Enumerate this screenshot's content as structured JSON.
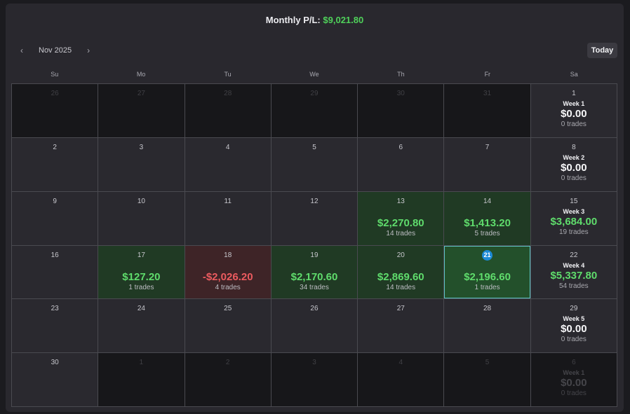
{
  "header": {
    "title_label": "Monthly P/L:",
    "title_value": "$9,021.80"
  },
  "nav": {
    "prev": "‹",
    "month": "Nov 2025",
    "next": "›",
    "today": "Today"
  },
  "days_of_week": [
    "Su",
    "Mo",
    "Tu",
    "We",
    "Th",
    "Fr",
    "Sa"
  ],
  "weeks": [
    {
      "days": [
        {
          "n": "26",
          "out": true
        },
        {
          "n": "27",
          "out": true
        },
        {
          "n": "28",
          "out": true
        },
        {
          "n": "29",
          "out": true
        },
        {
          "n": "30",
          "out": true
        },
        {
          "n": "31",
          "out": true
        },
        {
          "n": "1",
          "week": {
            "label": "Week 1",
            "pl": "$0.00",
            "trades": "0 trades",
            "state": "neutral"
          }
        }
      ]
    },
    {
      "days": [
        {
          "n": "2"
        },
        {
          "n": "3"
        },
        {
          "n": "4"
        },
        {
          "n": "5"
        },
        {
          "n": "6"
        },
        {
          "n": "7"
        },
        {
          "n": "8",
          "week": {
            "label": "Week 2",
            "pl": "$0.00",
            "trades": "0 trades",
            "state": "neutral"
          }
        }
      ]
    },
    {
      "days": [
        {
          "n": "9"
        },
        {
          "n": "10"
        },
        {
          "n": "11"
        },
        {
          "n": "12"
        },
        {
          "n": "13",
          "pl": "$2,270.80",
          "trades": "14 trades",
          "state": "pos"
        },
        {
          "n": "14",
          "pl": "$1,413.20",
          "trades": "5 trades",
          "state": "pos"
        },
        {
          "n": "15",
          "week": {
            "label": "Week 3",
            "pl": "$3,684.00",
            "trades": "19 trades",
            "state": "pos"
          }
        }
      ]
    },
    {
      "days": [
        {
          "n": "16"
        },
        {
          "n": "17",
          "pl": "$127.20",
          "trades": "1 trades",
          "state": "pos"
        },
        {
          "n": "18",
          "pl": "-$2,026.20",
          "trades": "4 trades",
          "state": "neg"
        },
        {
          "n": "19",
          "pl": "$2,170.60",
          "trades": "34 trades",
          "state": "pos"
        },
        {
          "n": "20",
          "pl": "$2,869.60",
          "trades": "14 trades",
          "state": "pos"
        },
        {
          "n": "21",
          "pl": "$2,196.60",
          "trades": "1 trades",
          "state": "pos",
          "today": true
        },
        {
          "n": "22",
          "week": {
            "label": "Week 4",
            "pl": "$5,337.80",
            "trades": "54 trades",
            "state": "pos"
          }
        }
      ]
    },
    {
      "days": [
        {
          "n": "23"
        },
        {
          "n": "24"
        },
        {
          "n": "25"
        },
        {
          "n": "26"
        },
        {
          "n": "27"
        },
        {
          "n": "28"
        },
        {
          "n": "29",
          "week": {
            "label": "Week 5",
            "pl": "$0.00",
            "trades": "0 trades",
            "state": "neutral"
          }
        }
      ]
    },
    {
      "days": [
        {
          "n": "30"
        },
        {
          "n": "1",
          "out": true
        },
        {
          "n": "2",
          "out": true
        },
        {
          "n": "3",
          "out": true
        },
        {
          "n": "4",
          "out": true
        },
        {
          "n": "5",
          "out": true
        },
        {
          "n": "6",
          "out": true,
          "week": {
            "label": "Week 1",
            "pl": "$0.00",
            "trades": "0 trades",
            "state": "neutral"
          }
        }
      ]
    }
  ],
  "colors": {
    "positive": "#5fdc6c",
    "negative": "#ec5b5f",
    "today_badge": "#1d8ad6",
    "today_border": "#5ec4c6"
  }
}
